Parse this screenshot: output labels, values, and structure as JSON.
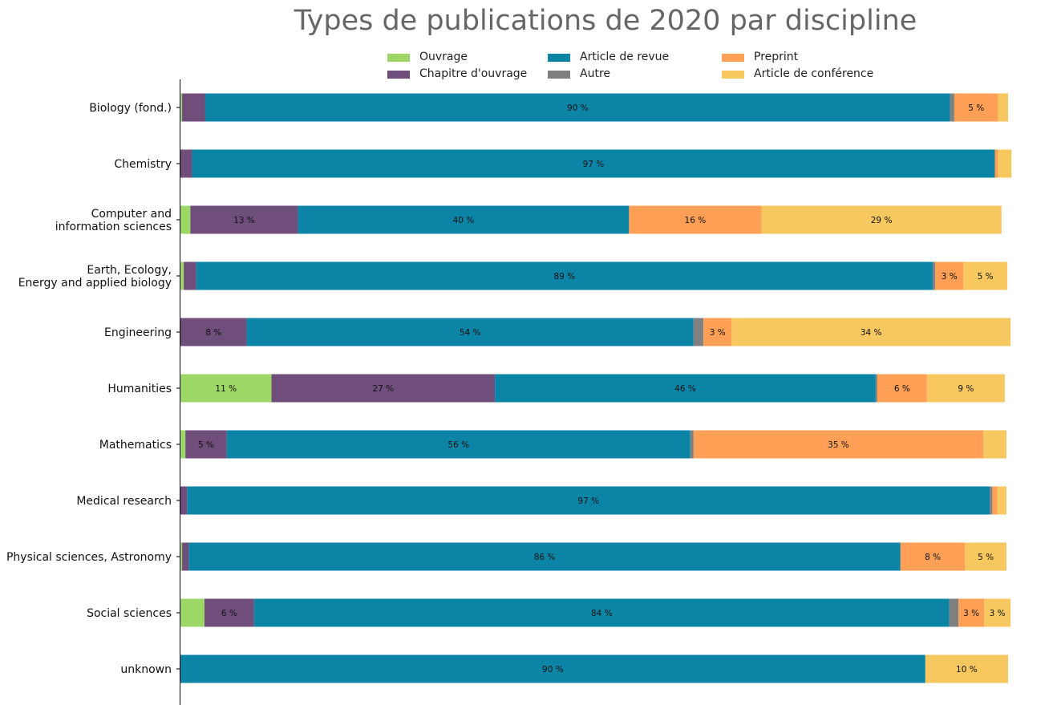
{
  "chart_data": {
    "type": "bar",
    "orientation": "horizontal",
    "stacked": true,
    "normalized": true,
    "title": "Types de publications de 2020 par discipline",
    "legend_placement": "top-center",
    "grid": false,
    "xlim": [
      0,
      100
    ],
    "categories": [
      "Biology (fond.)",
      "Chemistry",
      "Computer and\ninformation sciences",
      "Earth, Ecology,\nEnergy and applied biology",
      "Engineering",
      "Humanities",
      "Mathematics",
      "Medical research",
      "Physical sciences, Astronomy",
      "Social sciences",
      "unknown"
    ],
    "series": [
      {
        "name": "Ouvrage",
        "color": "#9dd866",
        "values": [
          0.2,
          0,
          1.2,
          0.4,
          0,
          11,
          0.6,
          0,
          0.2,
          2.9,
          0
        ]
      },
      {
        "name": "Chapitre d'ouvrage",
        "color": "#6f4e7c",
        "values": [
          2.8,
          1.4,
          13,
          1.5,
          8,
          27,
          5,
          0.8,
          0.8,
          6,
          0
        ]
      },
      {
        "name": "Article de revue",
        "color": "#0b84a5",
        "values": [
          90,
          97,
          40,
          89,
          54,
          46,
          56,
          97,
          86,
          84,
          90
        ]
      },
      {
        "name": "Autre",
        "color": "#808080",
        "values": [
          0.5,
          0,
          0,
          0.3,
          1.2,
          0.2,
          0.4,
          0.3,
          0,
          1.1,
          0
        ]
      },
      {
        "name": "Preprint",
        "color": "#ffa056",
        "values": [
          5.3,
          0.4,
          16,
          3.4,
          3.4,
          6,
          35,
          0.6,
          7.8,
          3.1,
          0
        ]
      },
      {
        "name": "Article de conférence",
        "color": "#f6c85f",
        "values": [
          1.2,
          1.6,
          29,
          5.3,
          33.7,
          9.4,
          2.8,
          1.1,
          5,
          3.2,
          10
        ]
      }
    ],
    "data_labels": [
      [
        "",
        "",
        "90 %",
        "",
        "5 %",
        ""
      ],
      [
        "",
        "",
        "97 %",
        "",
        "",
        ""
      ],
      [
        "",
        "13 %",
        "40 %",
        "",
        "16 %",
        "29 %"
      ],
      [
        "",
        "",
        "89 %",
        "",
        "3 %",
        "5 %"
      ],
      [
        "",
        "8 %",
        "54 %",
        "",
        "3 %",
        "34 %"
      ],
      [
        "11 %",
        "27 %",
        "46 %",
        "",
        "6 %",
        "9 %"
      ],
      [
        "",
        "5 %",
        "56 %",
        "",
        "35 %",
        ""
      ],
      [
        "",
        "",
        "97 %",
        "",
        "",
        ""
      ],
      [
        "",
        "",
        "86 %",
        "",
        "8 %",
        "5 %"
      ],
      [
        "",
        "6 %",
        "84 %",
        "",
        "3 %",
        "3 %"
      ],
      [
        "",
        "",
        "90 %",
        "",
        "",
        "10 %"
      ]
    ]
  }
}
